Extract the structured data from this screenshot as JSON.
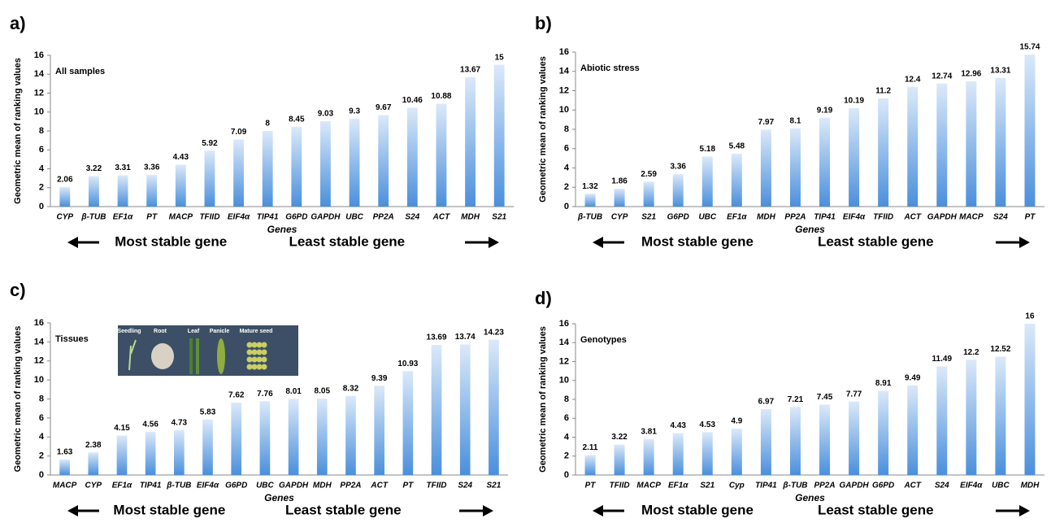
{
  "chart_data": [
    {
      "type": "bar",
      "panel": "a)",
      "title": "All samples",
      "y_label": "Geometric mean of ranking values",
      "x_label": "Genes",
      "annotations": [
        "Most stable gene",
        "Least stable gene"
      ],
      "categories": [
        "CYP",
        "β-TUB",
        "EF1α",
        "PT",
        "MACP",
        "TFIID",
        "EIF4α",
        "TIP41",
        "G6PD",
        "GAPDH",
        "UBC",
        "PP2A",
        "S24",
        "ACT",
        "MDH",
        "S21"
      ],
      "values": [
        2.06,
        3.22,
        3.31,
        3.36,
        4.43,
        5.92,
        7.09,
        8,
        8.45,
        9.03,
        9.3,
        9.67,
        10.46,
        10.88,
        13.67,
        15
      ],
      "color": "#4a8fdc",
      "ylim": [
        0,
        16
      ],
      "yticks": [
        0,
        2,
        4,
        6,
        8,
        10,
        12,
        14,
        16
      ]
    },
    {
      "type": "bar",
      "panel": "b)",
      "title": "Abiotic stress",
      "y_label": "Geometric mean of ranking values",
      "x_label": "Genes",
      "annotations": [
        "Most stable gene",
        "Least stable gene"
      ],
      "categories": [
        "β-TUB",
        "CYP",
        "S21",
        "G6PD",
        "UBC",
        "EF1α",
        "MDH",
        "PP2A",
        "TIP41",
        "EIF4α",
        "TFIID",
        "ACT",
        "GAPDH",
        "MACP",
        "S24",
        "PT"
      ],
      "values": [
        1.32,
        1.86,
        2.59,
        3.36,
        5.18,
        5.48,
        7.97,
        8.1,
        9.19,
        10.19,
        11.2,
        12.4,
        12.74,
        12.96,
        13.31,
        15.74
      ],
      "color": "#4a8fdc",
      "ylim": [
        0,
        16
      ],
      "yticks": [
        0,
        2,
        4,
        6,
        8,
        10,
        12,
        14,
        16
      ]
    },
    {
      "type": "bar",
      "panel": "c)",
      "title": "Tissues",
      "y_label": "Geometric mean of ranking values",
      "x_label": "Genes",
      "annotations": [
        "Most stable gene",
        "Least stable gene"
      ],
      "inset_labels": [
        "Seedling",
        "Root",
        "Leaf",
        "Panicle",
        "Mature seed"
      ],
      "categories": [
        "MACP",
        "CYP",
        "EF1α",
        "TIP41",
        "β-TUB",
        "EIF4α",
        "G6PD",
        "UBC",
        "GAPDH",
        "MDH",
        "PP2A",
        "ACT",
        "PT",
        "TFIID",
        "S24",
        "S21"
      ],
      "values": [
        1.63,
        2.38,
        4.15,
        4.56,
        4.73,
        5.83,
        7.62,
        7.76,
        8.01,
        8.05,
        8.32,
        9.39,
        10.93,
        13.69,
        13.74,
        14.23
      ],
      "color": "#4a8fdc",
      "ylim": [
        0,
        16
      ],
      "yticks": [
        0,
        2,
        4,
        6,
        8,
        10,
        12,
        14,
        16
      ]
    },
    {
      "type": "bar",
      "panel": "d)",
      "title": "Genotypes",
      "y_label": "Geometric mean of ranking values",
      "x_label": "Genes",
      "annotations": [
        "Most stable gene",
        "Least stable gene"
      ],
      "categories": [
        "PT",
        "TFIID",
        "MACP",
        "EF1α",
        "S21",
        "Cyp",
        "TIP41",
        "β-TUB",
        "PP2A",
        "GAPDH",
        "G6PD",
        "ACT",
        "S24",
        "EIF4α",
        "UBC",
        "MDH"
      ],
      "values": [
        2.11,
        3.22,
        3.81,
        4.43,
        4.53,
        4.9,
        6.97,
        7.21,
        7.45,
        7.77,
        8.91,
        9.49,
        11.49,
        12.2,
        12.52,
        16
      ],
      "color": "#4a8fdc",
      "ylim": [
        0,
        16
      ],
      "yticks": [
        0,
        2,
        4,
        6,
        8,
        10,
        12,
        14,
        16
      ]
    }
  ]
}
